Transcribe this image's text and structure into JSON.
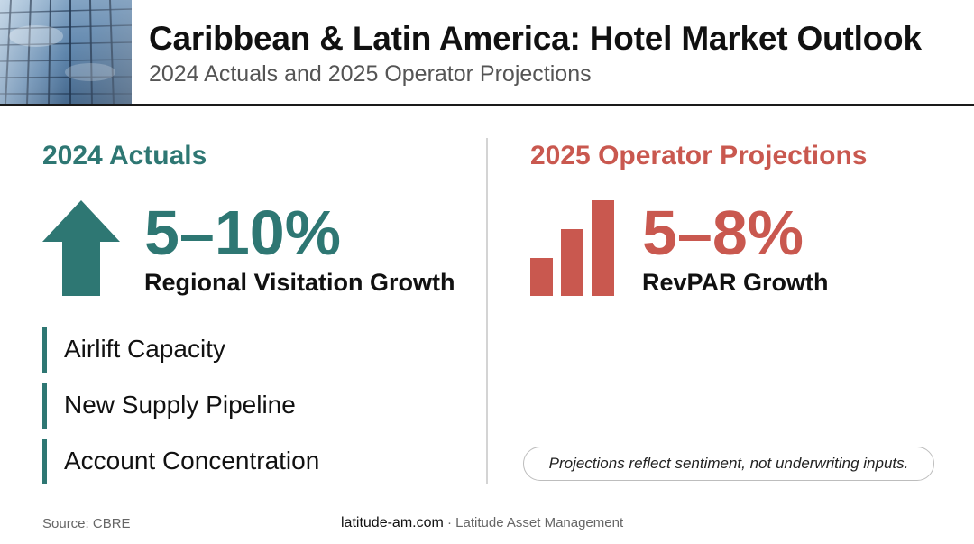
{
  "header": {
    "title": "Caribbean & Latin America: Hotel Market Outlook",
    "subtitle": "2024 Actuals and 2025 Operator Projections",
    "image_icon": "glass-building-photo"
  },
  "left_panel": {
    "heading": "2024 Actuals",
    "icon": "up-arrow-icon",
    "stat_value": "5–10%",
    "stat_label": "Regional Visitation Growth",
    "factors": [
      "Airlift Capacity",
      "New Supply Pipeline",
      "Account Concentration"
    ]
  },
  "right_panel": {
    "heading": "2025 Operator Projections",
    "icon": "bar-chart-icon",
    "stat_value": "5–8%",
    "stat_label": "RevPAR Growth",
    "note": "Projections reflect sentiment, not underwriting inputs."
  },
  "footer": {
    "source": "Source: CBRE",
    "site": "latitude-am.com",
    "separator": " · ",
    "company": "Latitude Asset Management"
  },
  "colors": {
    "teal": "#2e7773",
    "red": "#c9584f",
    "text": "#111111",
    "muted": "#555555"
  }
}
